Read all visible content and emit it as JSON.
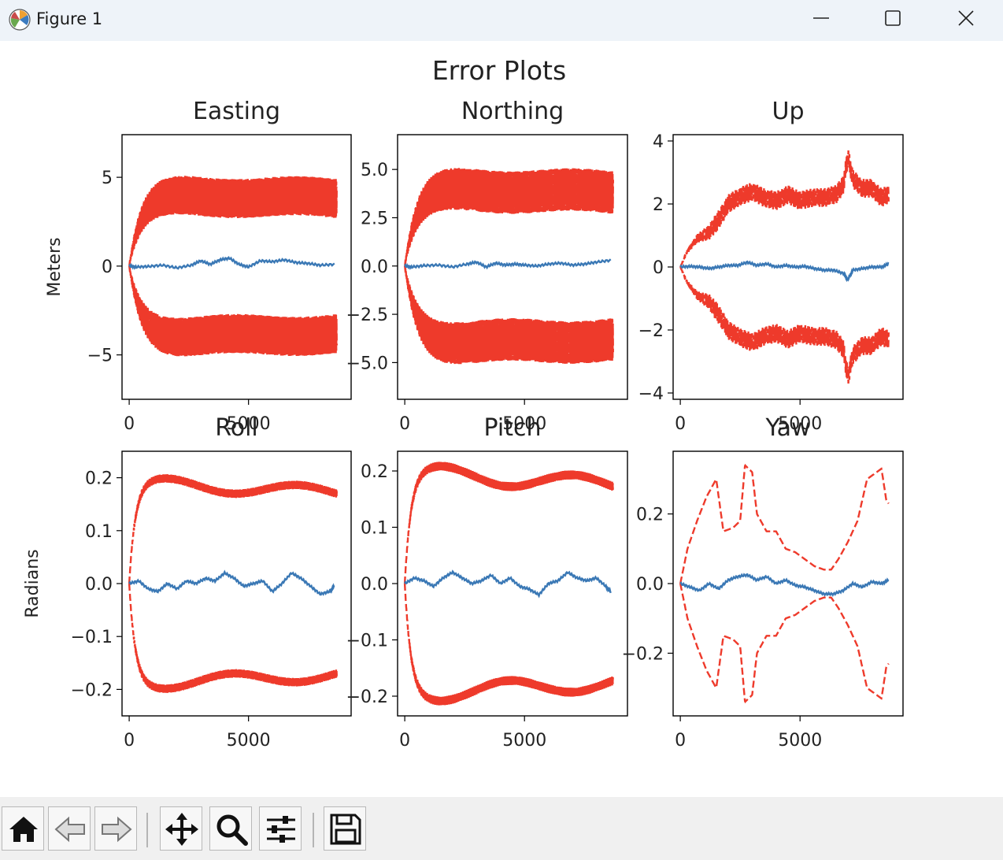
{
  "window": {
    "title": "Figure 1"
  },
  "toolbar": {
    "buttons": [
      {
        "name": "home-icon"
      },
      {
        "name": "back-icon"
      },
      {
        "name": "forward-icon"
      },
      {
        "name": "pan-icon"
      },
      {
        "name": "zoom-icon"
      },
      {
        "name": "configure-subplots-icon"
      },
      {
        "name": "save-icon"
      }
    ]
  },
  "colors": {
    "error": "#3a78b5",
    "bound": "#ee3a2b"
  },
  "figure": {
    "suptitle": "Error Plots"
  },
  "chart_data": [
    {
      "type": "line",
      "title": "Easting",
      "ylabel": "Meters",
      "xlim": [
        -300,
        9300
      ],
      "ylim": [
        -7.5,
        7.4
      ],
      "xticks": [
        0,
        5000
      ],
      "xtick_labels": [
        "0",
        "5000"
      ],
      "yticks": [
        -5,
        0,
        5
      ],
      "ytick_labels": [
        "−5",
        "0",
        "5"
      ],
      "bound": {
        "base": 3.9,
        "amp": 1.1,
        "tau": 500,
        "drift": 0.12,
        "n_points": 8700
      },
      "series": [
        {
          "x": [
            0,
            300,
            800,
            1400,
            2000,
            2600,
            3000,
            3400,
            3800,
            4200,
            4600,
            5000,
            5500,
            6000,
            6500,
            7000,
            7500,
            8000,
            8600
          ],
          "y": [
            0,
            -0.05,
            -0.02,
            0.05,
            -0.1,
            0.05,
            0.3,
            0.1,
            0.35,
            0.45,
            0.1,
            -0.05,
            0.3,
            0.25,
            0.35,
            0.2,
            0.15,
            0.05,
            0.1
          ]
        }
      ]
    },
    {
      "type": "line",
      "title": "Northing",
      "ylabel": "",
      "xlim": [
        -300,
        9300
      ],
      "ylim": [
        -6.9,
        6.8
      ],
      "xticks": [
        0,
        5000
      ],
      "xtick_labels": [
        "0",
        "5000"
      ],
      "yticks": [
        -5,
        -2.5,
        0,
        2.5,
        5
      ],
      "ytick_labels": [
        "−5.0",
        "−2.5",
        "0.0",
        "2.5",
        "5.0"
      ],
      "bound": {
        "base": 3.9,
        "amp": 1.1,
        "tau": 500,
        "drift": 0.12,
        "n_points": 8700
      },
      "series": [
        {
          "x": [
            0,
            300,
            800,
            1400,
            2000,
            2600,
            3000,
            3400,
            3800,
            4200,
            4600,
            5000,
            5500,
            6000,
            6500,
            7000,
            7500,
            8000,
            8600
          ],
          "y": [
            0,
            -0.05,
            0.02,
            0.05,
            -0.05,
            0.1,
            0.2,
            -0.05,
            0.15,
            0.05,
            0.1,
            0.05,
            0.0,
            0.1,
            0.15,
            0.05,
            0.1,
            0.2,
            0.3
          ]
        }
      ]
    },
    {
      "type": "line",
      "title": "Up",
      "ylabel": "",
      "xlim": [
        -300,
        9300
      ],
      "ylim": [
        -4.2,
        4.2
      ],
      "xticks": [
        0,
        5000
      ],
      "xtick_labels": [
        "0",
        "5000"
      ],
      "yticks": [
        -4,
        -2,
        0,
        2,
        4
      ],
      "ytick_labels": [
        "−4",
        "−2",
        "0",
        "2",
        "4"
      ],
      "bound": {
        "points": [
          [
            0,
            0
          ],
          [
            300,
            0.5
          ],
          [
            700,
            0.9
          ],
          [
            1200,
            1.1
          ],
          [
            1600,
            1.5
          ],
          [
            2000,
            2.0
          ],
          [
            2400,
            2.2
          ],
          [
            3000,
            2.4
          ],
          [
            3500,
            2.2
          ],
          [
            4000,
            2.1
          ],
          [
            4500,
            2.3
          ],
          [
            5000,
            2.1
          ],
          [
            5500,
            2.2
          ],
          [
            6000,
            2.2
          ],
          [
            6500,
            2.3
          ],
          [
            6800,
            2.6
          ],
          [
            7000,
            3.5
          ],
          [
            7200,
            2.8
          ],
          [
            7600,
            2.5
          ],
          [
            8000,
            2.5
          ],
          [
            8400,
            2.2
          ],
          [
            8700,
            2.3
          ]
        ],
        "amp": 0.3
      },
      "series": [
        {
          "x": [
            0,
            400,
            800,
            1200,
            1600,
            2000,
            2400,
            2800,
            3200,
            3600,
            4000,
            4400,
            4800,
            5200,
            5600,
            6000,
            6400,
            6800,
            7000,
            7200,
            7600,
            8000,
            8400,
            8700
          ],
          "y": [
            0,
            0.02,
            0.0,
            -0.05,
            0.0,
            0.05,
            0.05,
            0.15,
            0.05,
            0.1,
            0.0,
            0.05,
            0.0,
            0.02,
            -0.05,
            -0.1,
            -0.1,
            -0.2,
            -0.4,
            -0.1,
            -0.05,
            0.0,
            0.0,
            0.1
          ]
        }
      ]
    },
    {
      "type": "line",
      "title": "Roll",
      "ylabel": "Radians",
      "xlim": [
        -300,
        9300
      ],
      "ylim": [
        -0.25,
        0.25
      ],
      "xticks": [
        0,
        5000
      ],
      "xtick_labels": [
        "0",
        "5000"
      ],
      "yticks": [
        -0.2,
        -0.1,
        0,
        0.1,
        0.2
      ],
      "ytick_labels": [
        "−0.2",
        "−0.1",
        "0.0",
        "0.1",
        "0.2"
      ],
      "bound": {
        "base": 0.18,
        "amp": 0.008,
        "tau": 250,
        "drift": 0.012,
        "n_points": 8700
      },
      "series": [
        {
          "x": [
            0,
            400,
            800,
            1200,
            1600,
            2000,
            2400,
            2800,
            3200,
            3600,
            4000,
            4400,
            4800,
            5200,
            5600,
            6000,
            6400,
            6800,
            7200,
            7600,
            8000,
            8400,
            8600
          ],
          "y": [
            0,
            0.005,
            -0.01,
            -0.015,
            0.0,
            -0.01,
            0.005,
            0.0,
            0.01,
            0.005,
            0.02,
            0.01,
            -0.005,
            0.0,
            0.005,
            -0.015,
            0.0,
            0.02,
            0.01,
            -0.005,
            -0.02,
            -0.015,
            -0.005
          ]
        }
      ]
    },
    {
      "type": "line",
      "title": "Pitch",
      "ylabel": "",
      "xlim": [
        -300,
        9300
      ],
      "ylim": [
        -0.235,
        0.235
      ],
      "xticks": [
        0,
        5000
      ],
      "xtick_labels": [
        "0",
        "5000"
      ],
      "yticks": [
        -0.2,
        -0.1,
        0,
        0.1,
        0.2
      ],
      "ytick_labels": [
        "−0.2",
        "−0.1",
        "0.0",
        "0.1",
        "0.2"
      ],
      "bound": {
        "base": 0.185,
        "amp": 0.008,
        "tau": 250,
        "drift": 0.015,
        "n_points": 8700
      },
      "series": [
        {
          "x": [
            0,
            400,
            800,
            1200,
            1600,
            2000,
            2400,
            2800,
            3200,
            3600,
            4000,
            4400,
            4800,
            5200,
            5600,
            6000,
            6400,
            6800,
            7200,
            7600,
            8000,
            8400,
            8600
          ],
          "y": [
            0,
            0.01,
            0.005,
            -0.005,
            0.01,
            0.02,
            0.01,
            0.0,
            0.005,
            0.015,
            0.0,
            0.01,
            -0.005,
            -0.01,
            -0.02,
            0.0,
            0.005,
            0.02,
            0.01,
            0.005,
            0.01,
            -0.005,
            -0.015
          ]
        }
      ]
    },
    {
      "type": "line",
      "title": "Yaw",
      "ylabel": "",
      "xlim": [
        -300,
        9300
      ],
      "ylim": [
        -0.38,
        0.38
      ],
      "xticks": [
        0,
        5000
      ],
      "xtick_labels": [
        "0",
        "5000"
      ],
      "yticks": [
        -0.2,
        0,
        0.2
      ],
      "ytick_labels": [
        "−0.2",
        "0.0",
        "0.2"
      ],
      "bound": {
        "points": [
          [
            0,
            0
          ],
          [
            300,
            0.1
          ],
          [
            700,
            0.18
          ],
          [
            1100,
            0.25
          ],
          [
            1500,
            0.3
          ],
          [
            1800,
            0.15
          ],
          [
            2200,
            0.16
          ],
          [
            2500,
            0.18
          ],
          [
            2700,
            0.34
          ],
          [
            3000,
            0.32
          ],
          [
            3200,
            0.2
          ],
          [
            3600,
            0.15
          ],
          [
            4000,
            0.15
          ],
          [
            4400,
            0.1
          ],
          [
            4800,
            0.09
          ],
          [
            5200,
            0.07
          ],
          [
            5600,
            0.05
          ],
          [
            6000,
            0.04
          ],
          [
            6300,
            0.04
          ],
          [
            6600,
            0.07
          ],
          [
            7000,
            0.12
          ],
          [
            7400,
            0.18
          ],
          [
            7800,
            0.3
          ],
          [
            8200,
            0.32
          ],
          [
            8400,
            0.33
          ],
          [
            8600,
            0.24
          ],
          [
            8700,
            0.23
          ]
        ],
        "amp": 0.0
      },
      "series": [
        {
          "x": [
            0,
            400,
            800,
            1200,
            1600,
            2000,
            2400,
            2800,
            3200,
            3600,
            4000,
            4400,
            4800,
            5200,
            5600,
            6000,
            6400,
            6800,
            7200,
            7600,
            8000,
            8400,
            8700
          ],
          "y": [
            0,
            -0.01,
            -0.02,
            0.0,
            -0.015,
            0.01,
            0.02,
            0.025,
            0.01,
            0.02,
            0.0,
            0.01,
            -0.005,
            -0.01,
            -0.02,
            -0.03,
            -0.03,
            -0.02,
            0.0,
            -0.01,
            0.005,
            0.0,
            0.01
          ]
        }
      ]
    }
  ]
}
